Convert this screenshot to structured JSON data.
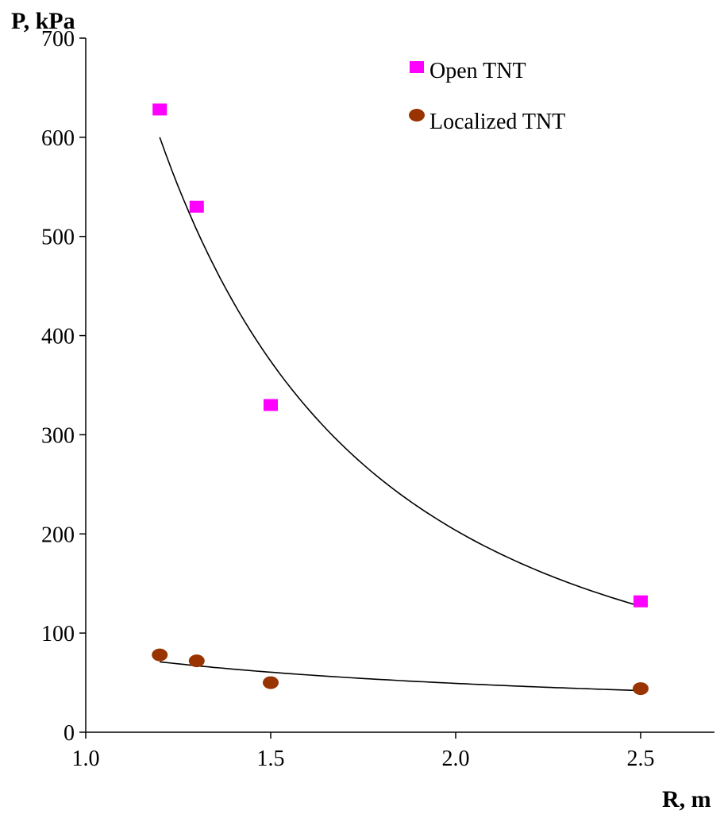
{
  "chart_data": {
    "type": "scatter",
    "xlabel": "R, m",
    "ylabel": "P, kPa",
    "xlim": [
      1.0,
      2.7
    ],
    "ylim": [
      0,
      700
    ],
    "xticks": [
      1.0,
      1.5,
      2.0,
      2.5
    ],
    "xtick_labels": [
      "1.0",
      "1.5",
      "2.0",
      "2.5"
    ],
    "yticks": [
      0,
      100,
      200,
      300,
      400,
      500,
      600,
      700
    ],
    "ytick_labels": [
      "0",
      "100",
      "200",
      "300",
      "400",
      "500",
      "600",
      "700"
    ],
    "grid": false,
    "legend_position": "top-right",
    "series": [
      {
        "name": "Open TNT",
        "marker": "square",
        "color": "#ff00ff",
        "x": [
          1.2,
          1.3,
          1.5,
          2.5
        ],
        "y": [
          628,
          530,
          330,
          132
        ],
        "trend": {
          "x_start": 1.2,
          "x_end": 2.5,
          "y_start": 600,
          "y_end": 127
        }
      },
      {
        "name": "Localized TNT",
        "marker": "circle",
        "color": "#993300",
        "x": [
          1.2,
          1.3,
          1.5,
          2.5
        ],
        "y": [
          78,
          72,
          50,
          44
        ],
        "trend": {
          "x_start": 1.2,
          "x_end": 2.5,
          "y_start": 71,
          "y_end": 42
        }
      }
    ]
  }
}
